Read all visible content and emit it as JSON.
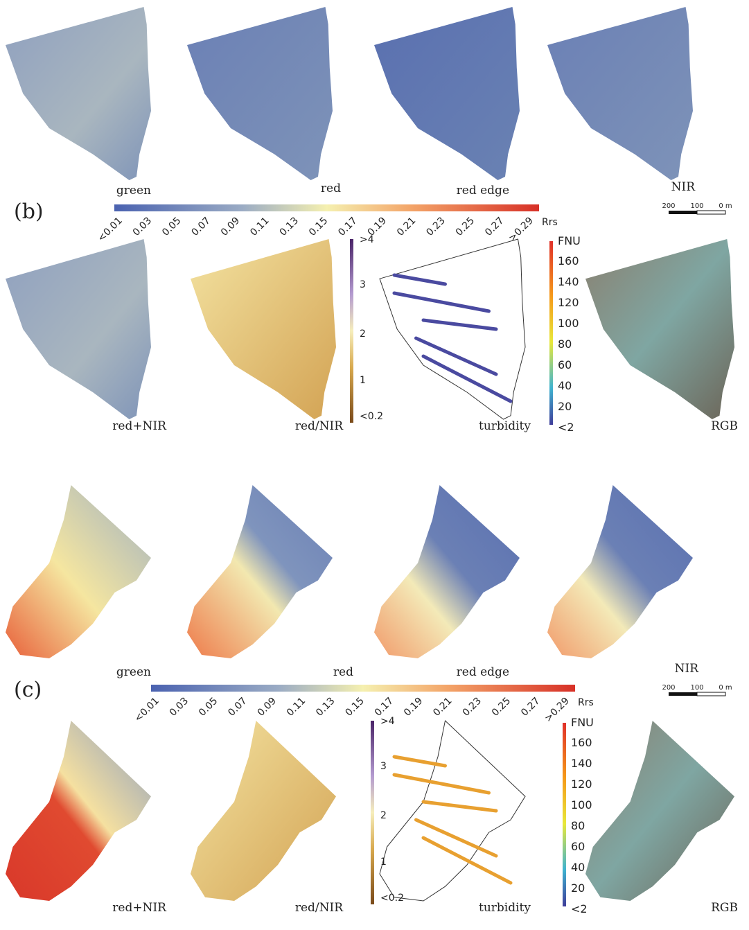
{
  "panels": [
    {
      "label": "(b)",
      "maps": [
        "green",
        "red",
        "red edge",
        "NIR",
        "red+NIR",
        "red/NIR",
        "turbidity",
        "RGB"
      ],
      "rrs_ticks": [
        "<0.01",
        "0.03",
        "0.05",
        "0.07",
        "0.09",
        "0.11",
        "0.13",
        "0.15",
        "0.17",
        "0.19",
        "0.21",
        "0.23",
        "0.25",
        "0.27",
        ">0.29"
      ],
      "rrs_unit": "Rrs",
      "scale_ticks": [
        "200",
        "100",
        "0 m"
      ],
      "ratio_ticks": [
        ">4",
        "3",
        "2",
        "1",
        "<0.2"
      ],
      "fnu_unit": "FNU",
      "fnu_ticks": [
        "160",
        "140",
        "120",
        "100",
        "80",
        "60",
        "40",
        "20",
        "<2"
      ]
    },
    {
      "label": "(c)",
      "maps": [
        "green",
        "red",
        "red edge",
        "NIR",
        "red+NIR",
        "red/NIR",
        "turbidity",
        "RGB"
      ],
      "rrs_ticks": [
        "<0.01",
        "0.03",
        "0.05",
        "0.07",
        "0.09",
        "0.11",
        "0.13",
        "0.15",
        "0.17",
        "0.19",
        "0.21",
        "0.23",
        "0.25",
        "0.27",
        ">0.29"
      ],
      "rrs_unit": "Rrs",
      "scale_ticks": [
        "200",
        "100",
        "0 m"
      ],
      "ratio_ticks": [
        ">4",
        "3",
        "2",
        "1",
        "<0.2"
      ],
      "fnu_unit": "FNU",
      "fnu_ticks": [
        "160",
        "140",
        "120",
        "100",
        "80",
        "60",
        "40",
        "20",
        "<2"
      ]
    }
  ]
}
